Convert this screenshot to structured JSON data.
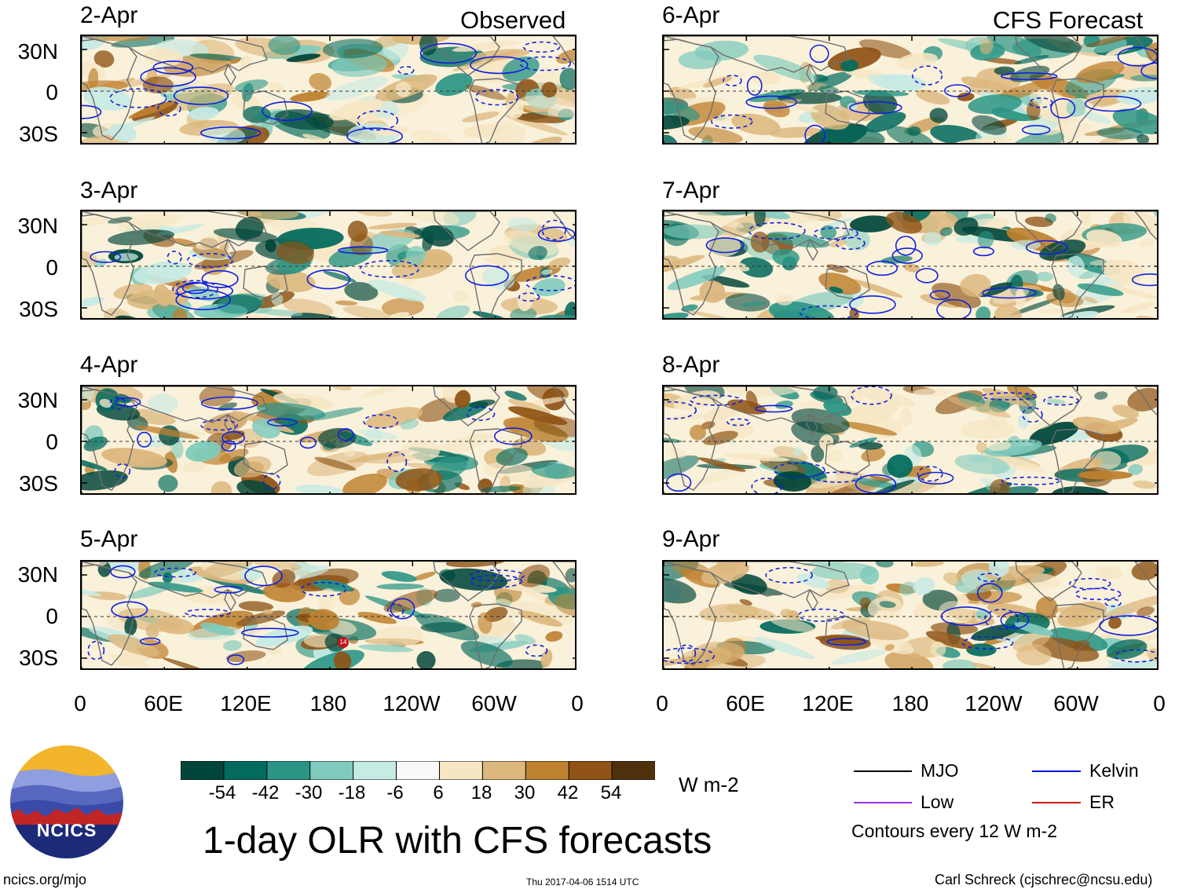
{
  "headers": {
    "left": "Observed",
    "right": "CFS Forecast"
  },
  "panels": [
    {
      "date": "2-Apr",
      "column": "left"
    },
    {
      "date": "3-Apr",
      "column": "left"
    },
    {
      "date": "4-Apr",
      "column": "left"
    },
    {
      "date": "5-Apr",
      "column": "left"
    },
    {
      "date": "6-Apr",
      "column": "right"
    },
    {
      "date": "7-Apr",
      "column": "right"
    },
    {
      "date": "8-Apr",
      "column": "right"
    },
    {
      "date": "9-Apr",
      "column": "right"
    }
  ],
  "lat_labels": [
    "30N",
    "0",
    "30S"
  ],
  "lon_labels": [
    "0",
    "60E",
    "120E",
    "180",
    "120W",
    "60W",
    "0"
  ],
  "colorbar": {
    "ticks": [
      "-54",
      "-42",
      "-30",
      "-18",
      "-6",
      "6",
      "18",
      "30",
      "42",
      "54"
    ],
    "units": "W m-2",
    "colors": [
      "#00463a",
      "#036b5e",
      "#2b9585",
      "#80cbbd",
      "#c6eae4",
      "#f9f9f9",
      "#f6e6c4",
      "#dcb77d",
      "#be8130",
      "#8e5315",
      "#4f300d"
    ]
  },
  "logo": {
    "text": "NCICS"
  },
  "title": "1-day OLR with CFS forecasts",
  "legend": {
    "items": [
      {
        "label": "MJO",
        "color": "#000000"
      },
      {
        "label": "Kelvin",
        "color": "#0c14d8"
      },
      {
        "label": "Low",
        "color": "#9b30e0"
      },
      {
        "label": "ER",
        "color": "#d01818"
      }
    ],
    "note": "Contours every 12 W m-2"
  },
  "footer": {
    "url": "ncics.org/mjo",
    "timestamp": "Thu 2017-04-06 1514 UTC",
    "credit": "Carl Schreck (cjschrec@ncsu.edu)"
  },
  "storm_marker": {
    "label": "14"
  }
}
